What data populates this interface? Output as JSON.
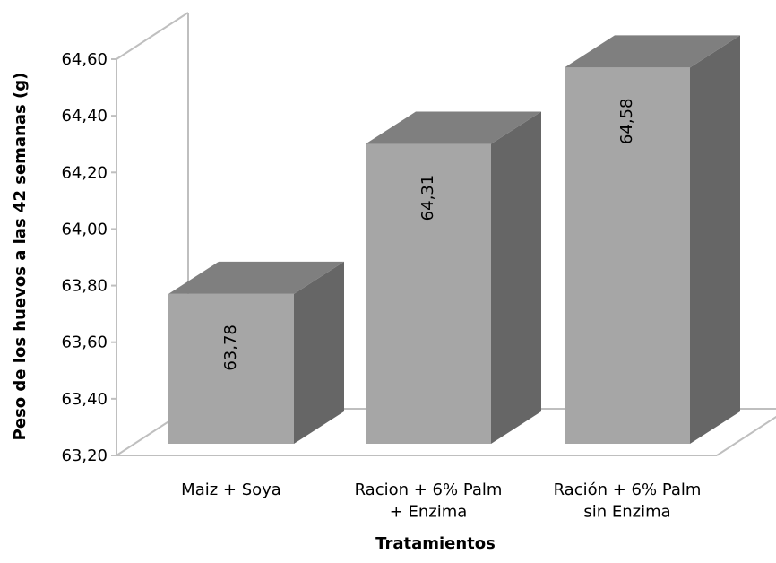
{
  "chart_data": {
    "type": "bar",
    "categories": [
      "Maiz + Soya",
      "Racion + 6% Palm + Enzima",
      "Ración + 6% Palm sin Enzima"
    ],
    "category_lines": [
      [
        "Maiz + Soya"
      ],
      [
        "Racion + 6% Palm",
        "+ Enzima"
      ],
      [
        "Ración + 6% Palm",
        "sin Enzima"
      ]
    ],
    "values": [
      63.78,
      64.31,
      64.58
    ],
    "data_labels": [
      "63,78",
      "64,31",
      "64,58"
    ],
    "title": "",
    "xlabel": "Tratamientos",
    "ylabel": "Peso de los huevos a las 42 semanas (g)",
    "ylim": [
      63.2,
      64.6
    ],
    "yticks": [
      63.2,
      63.4,
      63.6,
      63.8,
      64.0,
      64.2,
      64.4,
      64.6
    ],
    "ytick_labels": [
      "63,20",
      "63,40",
      "63,60",
      "63,80",
      "64,00",
      "64,20",
      "64,40",
      "64,60"
    ],
    "grid": false,
    "legend": "none",
    "three_d": true,
    "colors": {
      "bar_front": "#a6a6a6",
      "bar_side": "#666666",
      "bar_top": "#7f7f7f",
      "frame": "#bfbfbf"
    }
  }
}
